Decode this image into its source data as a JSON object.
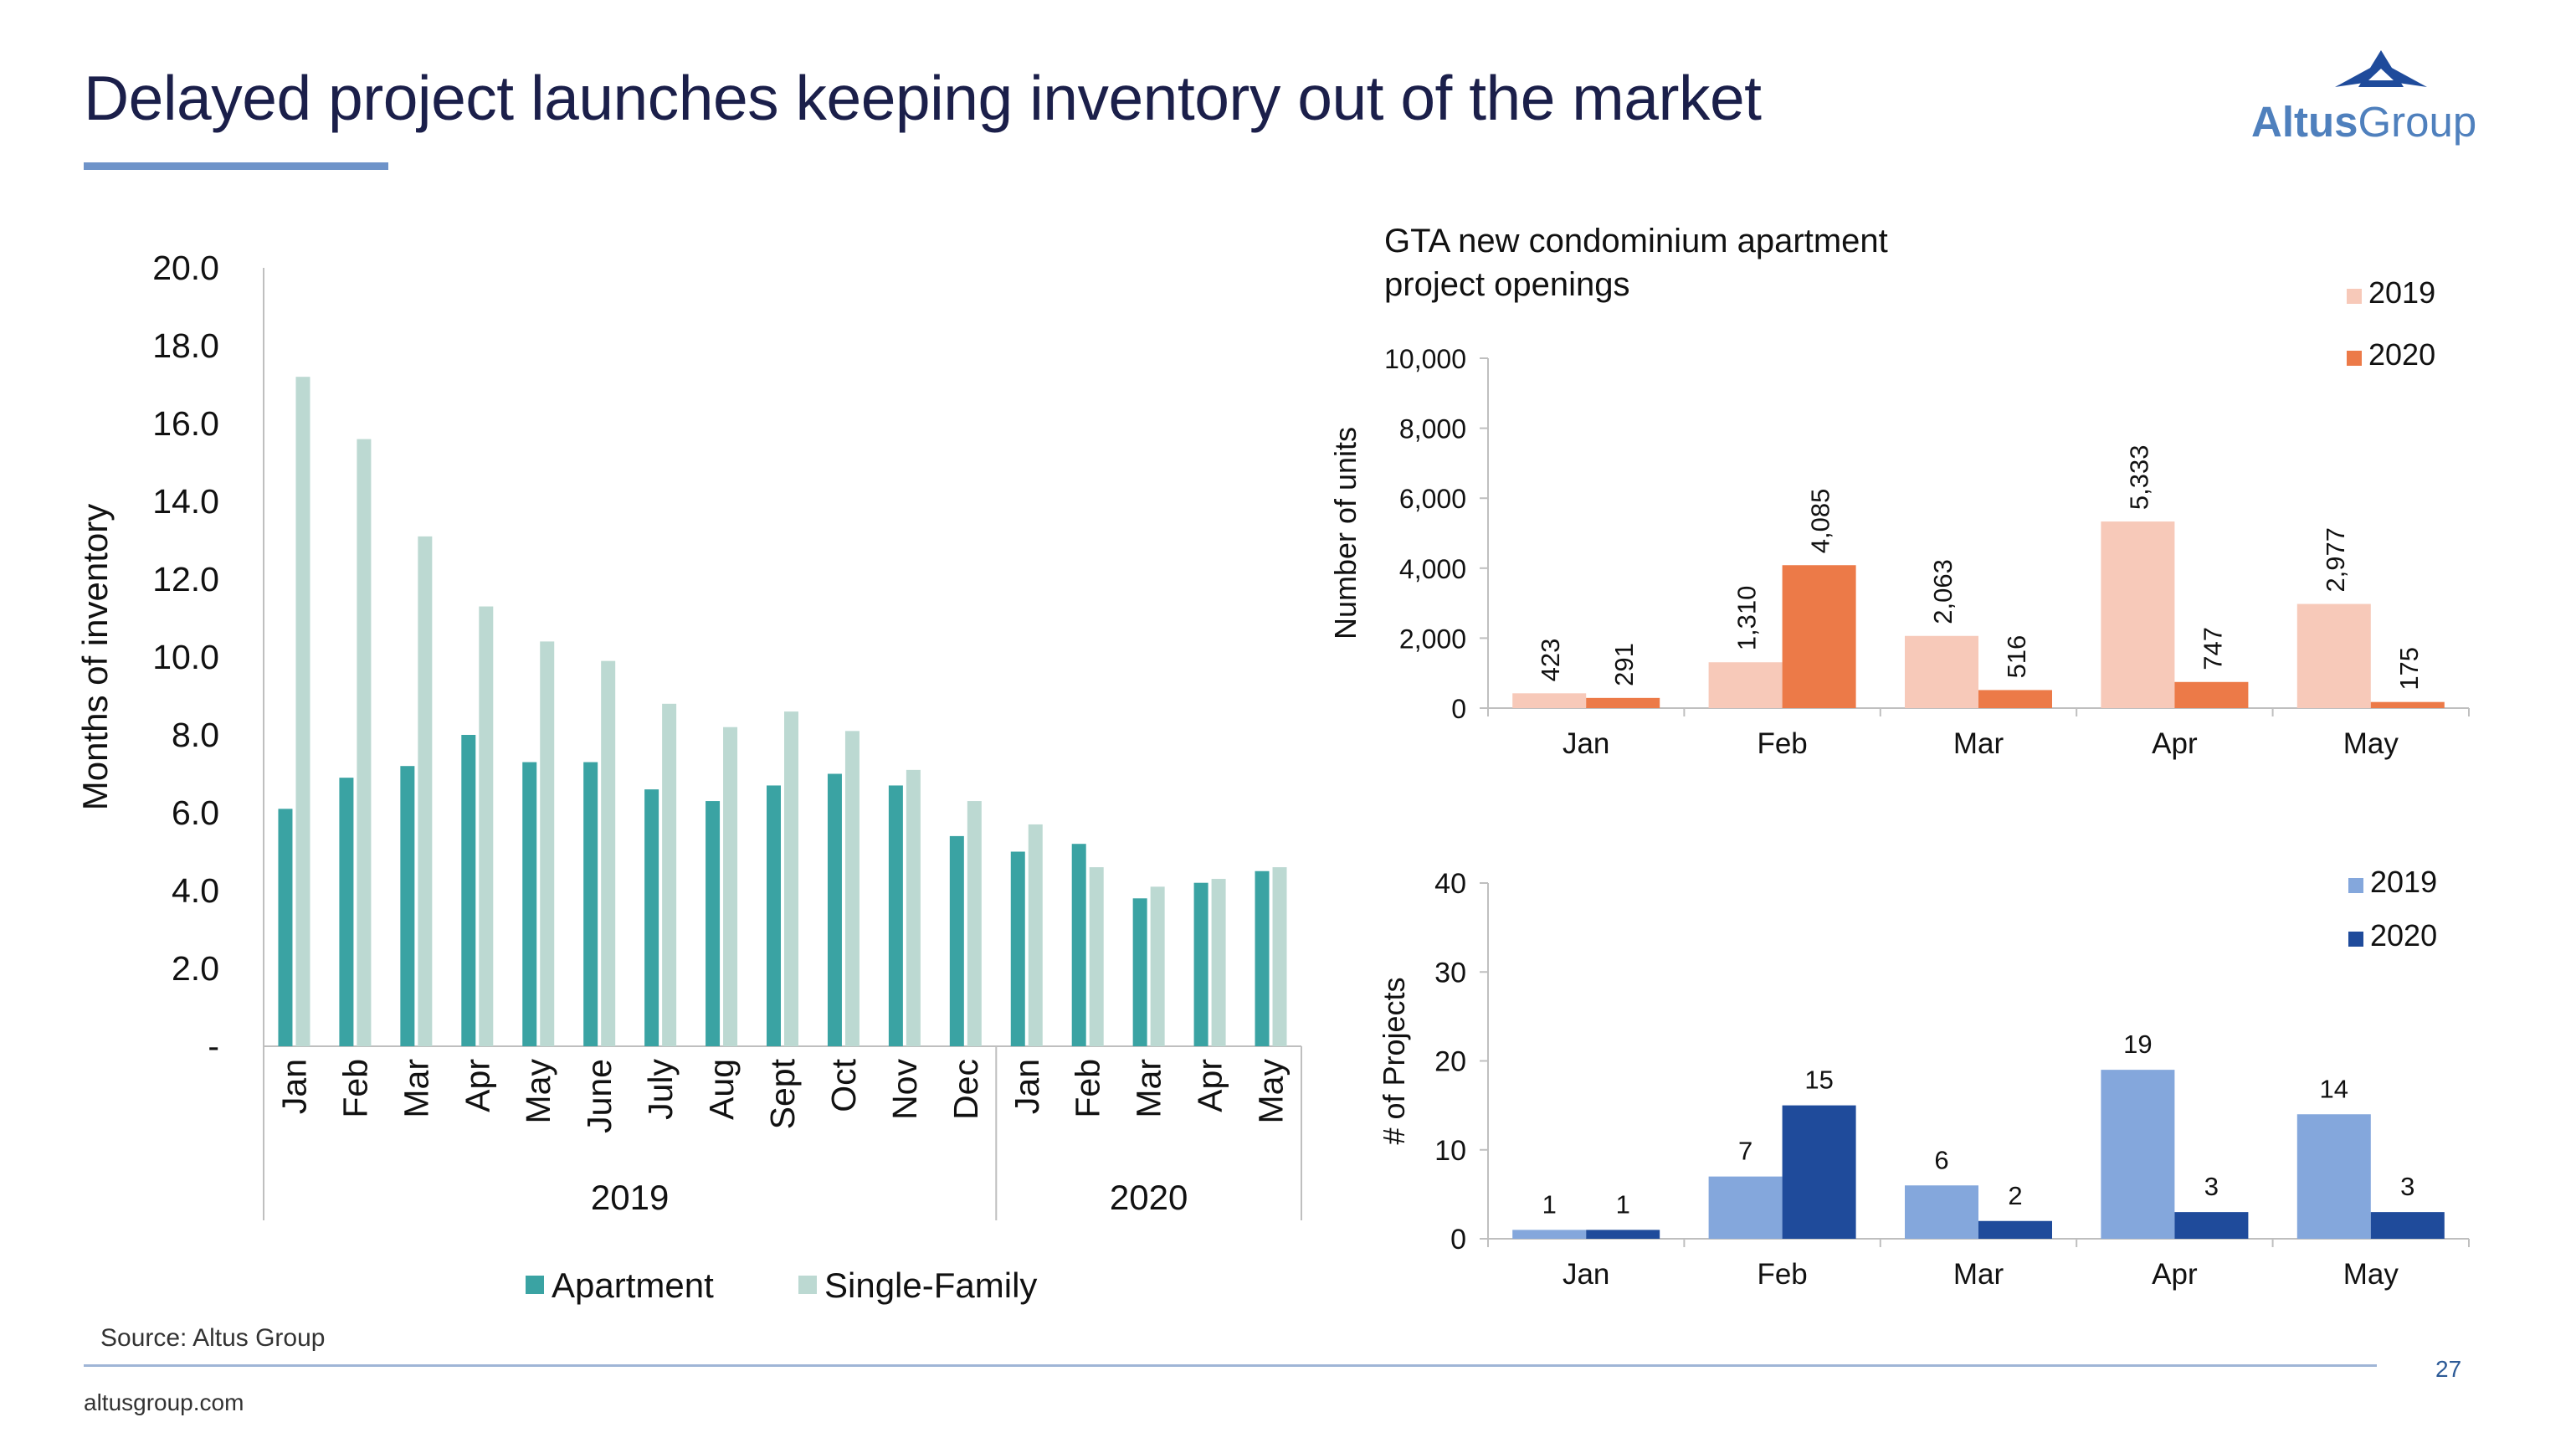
{
  "header": {
    "title": "Delayed project launches keeping inventory out of the market",
    "logo_bold": "Altus",
    "logo_regular": "Group"
  },
  "footer": {
    "source": "Source: Altus Group",
    "website": "altusgroup.com",
    "page_number": "27"
  },
  "colors": {
    "apartment": "#3aa3a3",
    "single_family": "#bcd9d2",
    "units_2019": "#f7c9b9",
    "units_2020": "#ec7a48",
    "projects_2019": "#84a7dc",
    "projects_2020": "#1f4b9b",
    "title_text": "#1b1f4a",
    "accent": "#6e93c9"
  },
  "chart_data": [
    {
      "type": "bar",
      "ylabel": "Months of inventory",
      "ylim": [
        0,
        20
      ],
      "yticks": [
        "-",
        "2.0",
        "4.0",
        "6.0",
        "8.0",
        "10.0",
        "12.0",
        "14.0",
        "16.0",
        "18.0",
        "20.0"
      ],
      "categories": [
        "Jan",
        "Feb",
        "Mar",
        "Apr",
        "May",
        "June",
        "July",
        "Aug",
        "Sept",
        "Oct",
        "Nov",
        "Dec",
        "Jan",
        "Feb",
        "Mar",
        "Apr",
        "May"
      ],
      "groups": [
        {
          "label": "2019",
          "count": 12
        },
        {
          "label": "2020",
          "count": 5
        }
      ],
      "series": [
        {
          "name": "Apartment",
          "values": [
            6.1,
            6.9,
            7.2,
            8.0,
            7.3,
            7.3,
            6.6,
            6.3,
            6.7,
            7.0,
            6.7,
            5.4,
            5.0,
            5.2,
            3.8,
            4.2,
            4.5
          ]
        },
        {
          "name": "Single-Family",
          "values": [
            17.2,
            15.6,
            13.1,
            11.3,
            10.4,
            9.9,
            8.8,
            8.2,
            8.6,
            8.1,
            7.1,
            6.3,
            5.7,
            4.6,
            4.1,
            4.3,
            4.6
          ]
        }
      ],
      "legend": "bottom"
    },
    {
      "type": "bar",
      "title": "GTA new condominium apartment project openings",
      "ylabel": "Number of units",
      "ylim": [
        0,
        10000
      ],
      "yticks": [
        "0",
        "2,000",
        "4,000",
        "6,000",
        "8,000",
        "10,000"
      ],
      "categories": [
        "Jan",
        "Feb",
        "Mar",
        "Apr",
        "May"
      ],
      "series": [
        {
          "name": "2019",
          "values": [
            423,
            1310,
            2063,
            5333,
            2977
          ],
          "labels": [
            "423",
            "1,310",
            "2,063",
            "5,333",
            "2,977"
          ]
        },
        {
          "name": "2020",
          "values": [
            291,
            4085,
            516,
            747,
            175
          ],
          "labels": [
            "291",
            "4,085",
            "516",
            "747",
            "175"
          ]
        }
      ],
      "legend": "top-right"
    },
    {
      "type": "bar",
      "ylabel": "# of Projects",
      "ylim": [
        0,
        40
      ],
      "yticks": [
        "0",
        "10",
        "20",
        "30",
        "40"
      ],
      "categories": [
        "Jan",
        "Feb",
        "Mar",
        "Apr",
        "May"
      ],
      "series": [
        {
          "name": "2019",
          "values": [
            1,
            7,
            6,
            19,
            14
          ],
          "labels": [
            "1",
            "7",
            "6",
            "19",
            "14"
          ]
        },
        {
          "name": "2020",
          "values": [
            1,
            15,
            2,
            3,
            3
          ],
          "labels": [
            "1",
            "15",
            "2",
            "3",
            "3"
          ]
        }
      ],
      "legend": "top-right"
    }
  ]
}
